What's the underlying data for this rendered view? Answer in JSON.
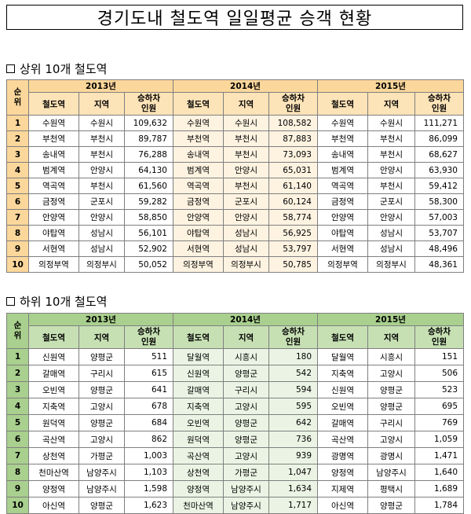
{
  "title": "경기도내 철도역 일일평균 승객 현황",
  "columns": {
    "rank": "순위",
    "rank_lines": [
      "순",
      "위"
    ],
    "station": "철도역",
    "region": "지역",
    "passengers_lines": [
      "승하차",
      "인원"
    ]
  },
  "years": [
    "2013년",
    "2014년",
    "2015년"
  ],
  "top": {
    "heading": "상위 10개 철도역",
    "rows": [
      {
        "rank": "1",
        "y2013": [
          "수원역",
          "수원시",
          "109,632"
        ],
        "y2014": [
          "수원역",
          "수원시",
          "108,582"
        ],
        "y2015": [
          "수원역",
          "수원시",
          "111,271"
        ]
      },
      {
        "rank": "2",
        "y2013": [
          "부천역",
          "부천시",
          "89,787"
        ],
        "y2014": [
          "부천역",
          "부천시",
          "87,883"
        ],
        "y2015": [
          "부천역",
          "부천시",
          "86,099"
        ]
      },
      {
        "rank": "3",
        "y2013": [
          "송내역",
          "부천시",
          "76,288"
        ],
        "y2014": [
          "송내역",
          "부천시",
          "73,093"
        ],
        "y2015": [
          "송내역",
          "부천시",
          "68,627"
        ]
      },
      {
        "rank": "4",
        "y2013": [
          "범계역",
          "안양시",
          "64,130"
        ],
        "y2014": [
          "범계역",
          "안양시",
          "65,031"
        ],
        "y2015": [
          "범계역",
          "안양시",
          "63,930"
        ]
      },
      {
        "rank": "5",
        "y2013": [
          "역곡역",
          "부천시",
          "61,560"
        ],
        "y2014": [
          "역곡역",
          "부천시",
          "61,140"
        ],
        "y2015": [
          "역곡역",
          "부천시",
          "59,412"
        ]
      },
      {
        "rank": "6",
        "y2013": [
          "금정역",
          "군포시",
          "59,282"
        ],
        "y2014": [
          "금정역",
          "군포시",
          "60,124"
        ],
        "y2015": [
          "금정역",
          "군포시",
          "58,300"
        ]
      },
      {
        "rank": "7",
        "y2013": [
          "안양역",
          "안양시",
          "58,850"
        ],
        "y2014": [
          "안양역",
          "안양시",
          "58,774"
        ],
        "y2015": [
          "안양역",
          "안양시",
          "57,003"
        ]
      },
      {
        "rank": "8",
        "y2013": [
          "야탑역",
          "성남시",
          "56,101"
        ],
        "y2014": [
          "야탑역",
          "성남시",
          "56,925"
        ],
        "y2015": [
          "야탑역",
          "성남시",
          "53,707"
        ]
      },
      {
        "rank": "9",
        "y2013": [
          "서현역",
          "성남시",
          "52,902"
        ],
        "y2014": [
          "서현역",
          "성남시",
          "53,797"
        ],
        "y2015": [
          "서현역",
          "성남시",
          "48,496"
        ]
      },
      {
        "rank": "10",
        "y2013": [
          "의정부역",
          "의정부시",
          "50,052"
        ],
        "y2014": [
          "의정부역",
          "의정부시",
          "50,785"
        ],
        "y2015": [
          "의정부역",
          "의정부시",
          "48,361"
        ]
      }
    ]
  },
  "bottom": {
    "heading": "하위 10개 철도역",
    "rows": [
      {
        "rank": "1",
        "y2013": [
          "신원역",
          "양평군",
          "511"
        ],
        "y2014": [
          "달월역",
          "시흥시",
          "180"
        ],
        "y2015": [
          "달월역",
          "시흥시",
          "151"
        ]
      },
      {
        "rank": "2",
        "y2013": [
          "갈매역",
          "구리시",
          "615"
        ],
        "y2014": [
          "신원역",
          "양평군",
          "542"
        ],
        "y2015": [
          "지축역",
          "고양시",
          "506"
        ]
      },
      {
        "rank": "3",
        "y2013": [
          "오빈역",
          "양평군",
          "641"
        ],
        "y2014": [
          "갈매역",
          "구리시",
          "594"
        ],
        "y2015": [
          "신원역",
          "양평군",
          "523"
        ]
      },
      {
        "rank": "4",
        "y2013": [
          "지축역",
          "고양시",
          "678"
        ],
        "y2014": [
          "지축역",
          "고양시",
          "595"
        ],
        "y2015": [
          "오빈역",
          "양평군",
          "695"
        ]
      },
      {
        "rank": "5",
        "y2013": [
          "원덕역",
          "양평군",
          "684"
        ],
        "y2014": [
          "오빈역",
          "양평군",
          "642"
        ],
        "y2015": [
          "갈매역",
          "구리시",
          "769"
        ]
      },
      {
        "rank": "6",
        "y2013": [
          "곡산역",
          "고양시",
          "862"
        ],
        "y2014": [
          "원덕역",
          "양평군",
          "736"
        ],
        "y2015": [
          "곡산역",
          "고양시",
          "1,059"
        ]
      },
      {
        "rank": "7",
        "y2013": [
          "상천역",
          "가평군",
          "1,003"
        ],
        "y2014": [
          "곡산역",
          "고양시",
          "939"
        ],
        "y2015": [
          "광명역",
          "광명시",
          "1,471"
        ]
      },
      {
        "rank": "8",
        "y2013": [
          "천마산역",
          "남양주시",
          "1,103"
        ],
        "y2014": [
          "상천역",
          "가평군",
          "1,047"
        ],
        "y2015": [
          "양정역",
          "남양주시",
          "1,640"
        ]
      },
      {
        "rank": "9",
        "y2013": [
          "양정역",
          "남양주시",
          "1,598"
        ],
        "y2014": [
          "양정역",
          "남양주시",
          "1,634"
        ],
        "y2015": [
          "지제역",
          "평택시",
          "1,689"
        ]
      },
      {
        "rank": "10",
        "y2013": [
          "아신역",
          "양평군",
          "1,623"
        ],
        "y2014": [
          "천마산역",
          "남양주시",
          "1,717"
        ],
        "y2015": [
          "아신역",
          "양평군",
          "1,784"
        ]
      }
    ]
  }
}
